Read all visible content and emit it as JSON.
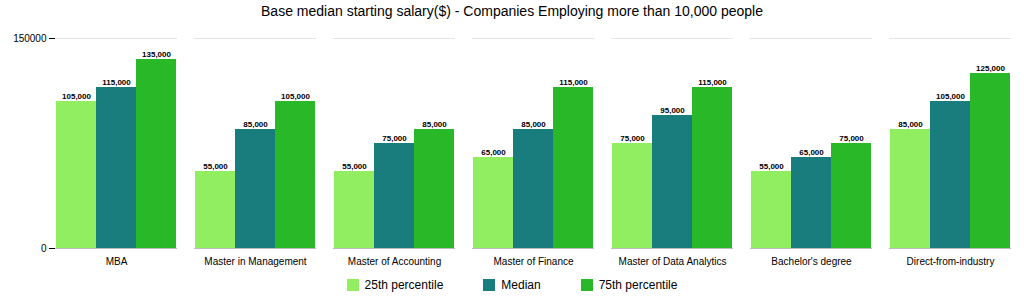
{
  "chart_data": {
    "type": "bar",
    "title": "Base median starting salary($) - Companies Employing more than 10,000 people",
    "categories": [
      "MBA",
      "Master in Management",
      "Master of Accounting",
      "Master of Finance",
      "Master of Data Analytics",
      "Bachelor's degree",
      "Direct-from-industry"
    ],
    "series": [
      {
        "name": "25th percentile",
        "color": "#90EE60",
        "values": [
          105000,
          55000,
          55000,
          65000,
          75000,
          55000,
          85000
        ],
        "value_labels": [
          "105,000",
          "55,000",
          "55,000",
          "65,000",
          "75,000",
          "55,000",
          "85,000"
        ]
      },
      {
        "name": "Median",
        "color": "#1A7D7D",
        "values": [
          115000,
          85000,
          75000,
          85000,
          95000,
          65000,
          105000
        ],
        "value_labels": [
          "115,000",
          "85,000",
          "75,000",
          "85,000",
          "95,000",
          "65,000",
          "105,000"
        ]
      },
      {
        "name": "75th percentile",
        "color": "#28B828",
        "values": [
          135000,
          105000,
          85000,
          115000,
          115000,
          75000,
          125000
        ],
        "value_labels": [
          "135,000",
          "105,000",
          "85,000",
          "115,000",
          "115,000",
          "75,000",
          "125,000"
        ]
      }
    ],
    "ylim": [
      0,
      150000
    ],
    "yticks": [
      0,
      150000
    ],
    "grid": true,
    "data_labels": true,
    "legend": "bottom"
  }
}
